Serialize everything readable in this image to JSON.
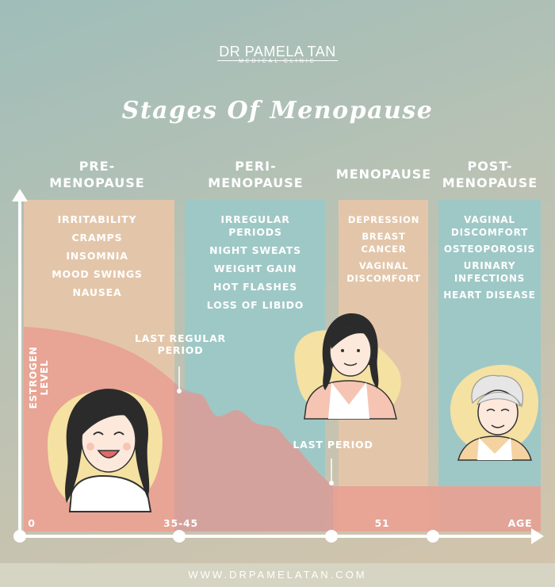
{
  "brand": {
    "name": "DR PAMELA TAN",
    "subtitle": "MEDICAL CLINIC"
  },
  "title": "Stages Of Menopause",
  "y_axis_label": "ESTROGEN LEVEL",
  "stages": [
    {
      "heading": [
        "PRE-",
        "MENOPAUSE"
      ],
      "symptoms": [
        "IRRITABILITY",
        "CRAMPS",
        "INSOMNIA",
        "MOOD SWINGS",
        "NAUSEA"
      ],
      "color": "#e3c6aa"
    },
    {
      "heading": [
        "PERI-",
        "MENOPAUSE"
      ],
      "symptoms": [
        "IRREGULAR PERIODS",
        "NIGHT SWEATS",
        "WEIGHT GAIN",
        "HOT FLASHES",
        "LOSS OF LIBIDO"
      ],
      "color": "#9ec8c6"
    },
    {
      "heading": [
        "MENOPAUSE"
      ],
      "symptoms": [
        "DEPRESSION",
        "BREAST CANCER",
        "VAGINAL DISCOMFORT"
      ],
      "color": "#e3c6aa"
    },
    {
      "heading": [
        "POST-",
        "MENOPAUSE"
      ],
      "symptoms": [
        "VAGINAL DISCOMFORT",
        "OSTEOPOROSIS",
        "URINARY INFECTIONS",
        "HEART DISEASE"
      ],
      "color": "#9ec8c6"
    }
  ],
  "annotations": {
    "last_regular_period": "LAST REGULAR PERIOD",
    "last_period": "LAST PERIOD"
  },
  "x_ticks": [
    "0",
    "35-45",
    "51",
    "AGE"
  ],
  "footer": "WWW.DRPAMELATAN.COM",
  "colors": {
    "estrogen_area": "#e8a193",
    "peach_panel": "#e3c6aa",
    "teal_panel": "#9ec8c6",
    "axis": "#ffffff",
    "face_bg": "#f5e1a2"
  },
  "illustrations": [
    "young-woman-icon",
    "middle-aged-woman-icon",
    "elderly-woman-icon"
  ]
}
